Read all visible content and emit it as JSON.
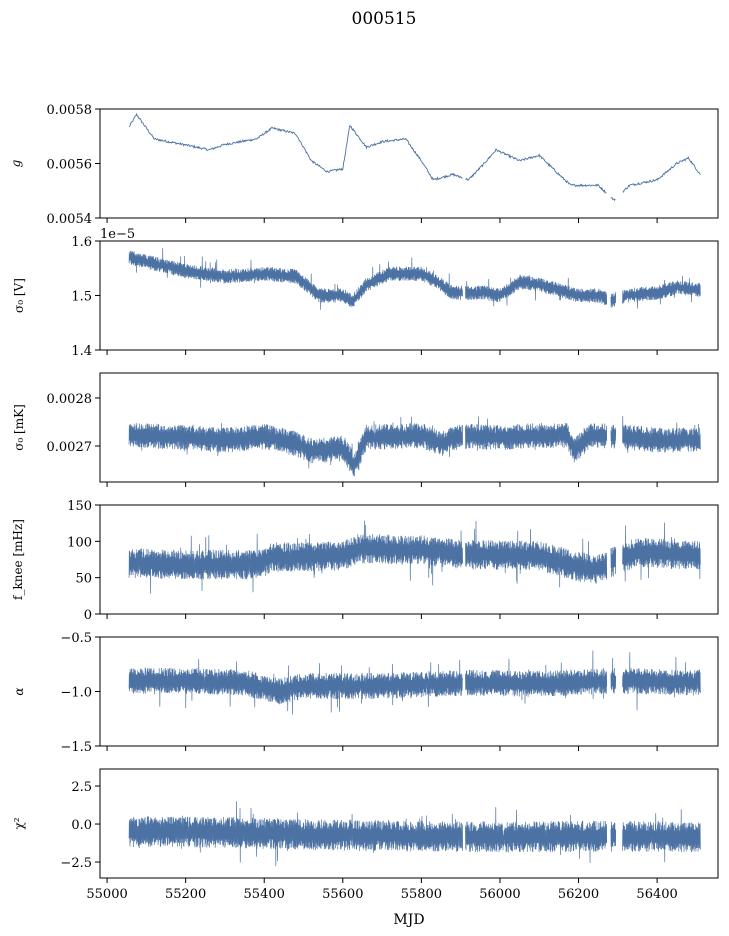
{
  "chart_data": {
    "type": "line",
    "title": "000515",
    "xlabel": "MJD",
    "xlim": [
      54982,
      56555
    ],
    "xticks": [
      55000,
      55200,
      55400,
      55600,
      55800,
      56000,
      56200,
      56400
    ],
    "xtick_labels": [
      "55000",
      "55200",
      "55400",
      "55600",
      "55800",
      "56000",
      "56200",
      "56400"
    ],
    "data_range": [
      55056,
      56510
    ],
    "gaps": [
      [
        55905,
        55912
      ],
      [
        56272,
        56282
      ],
      [
        56295,
        56312
      ]
    ],
    "color": "#4c72a4",
    "panels": [
      {
        "ylabel": "g",
        "ylim": [
          0.0054,
          0.0058
        ],
        "yticks": [
          0.0054,
          0.0056,
          0.0058
        ],
        "ytick_labels": [
          "0.0054",
          "0.0056",
          "0.0058"
        ],
        "offset": "",
        "noise": 4e-06,
        "spikes": 0.0,
        "trend": [
          [
            55056,
            0.005734
          ],
          [
            55075,
            0.00578
          ],
          [
            55120,
            0.00569
          ],
          [
            55200,
            0.005668
          ],
          [
            55260,
            0.00565
          ],
          [
            55300,
            0.00567
          ],
          [
            55380,
            0.00569
          ],
          [
            55420,
            0.00573
          ],
          [
            55480,
            0.00571
          ],
          [
            55520,
            0.00561
          ],
          [
            55560,
            0.00557
          ],
          [
            55600,
            0.00558
          ],
          [
            55618,
            0.00574
          ],
          [
            55660,
            0.00566
          ],
          [
            55700,
            0.00568
          ],
          [
            55760,
            0.00569
          ],
          [
            55800,
            0.00561
          ],
          [
            55830,
            0.00554
          ],
          [
            55880,
            0.00556
          ],
          [
            55920,
            0.00554
          ],
          [
            55960,
            0.0056
          ],
          [
            55990,
            0.00565
          ],
          [
            56050,
            0.00561
          ],
          [
            56100,
            0.00563
          ],
          [
            56150,
            0.00556
          ],
          [
            56180,
            0.00552
          ],
          [
            56250,
            0.00552
          ],
          [
            56290,
            0.005466
          ],
          [
            56330,
            0.00552
          ],
          [
            56400,
            0.00554
          ],
          [
            56450,
            0.0056
          ],
          [
            56480,
            0.00562
          ],
          [
            56510,
            0.00556
          ]
        ]
      },
      {
        "ylabel": "σ₀ [V]",
        "ylim": [
          1.4,
          1.6
        ],
        "yticks": [
          1.4,
          1.5,
          1.6
        ],
        "ytick_labels": [
          "1.4",
          "1.5",
          "1.6"
        ],
        "offset": "1e−5",
        "noise": 0.011,
        "spikes": 0.02,
        "trend": [
          [
            55056,
            1.57
          ],
          [
            55200,
            1.545
          ],
          [
            55300,
            1.535
          ],
          [
            55400,
            1.54
          ],
          [
            55480,
            1.535
          ],
          [
            55540,
            1.5
          ],
          [
            55600,
            1.5
          ],
          [
            55625,
            1.49
          ],
          [
            55660,
            1.52
          ],
          [
            55720,
            1.54
          ],
          [
            55800,
            1.54
          ],
          [
            55840,
            1.525
          ],
          [
            55880,
            1.505
          ],
          [
            55960,
            1.505
          ],
          [
            56000,
            1.5
          ],
          [
            56050,
            1.525
          ],
          [
            56100,
            1.52
          ],
          [
            56150,
            1.51
          ],
          [
            56200,
            1.5
          ],
          [
            56250,
            1.5
          ],
          [
            56280,
            1.49
          ],
          [
            56320,
            1.5
          ],
          [
            56400,
            1.505
          ],
          [
            56450,
            1.515
          ],
          [
            56510,
            1.51
          ]
        ]
      },
      {
        "ylabel": "σ₀ [mK]",
        "ylim": [
          0.002625,
          0.002852
        ],
        "yticks": [
          0.0027,
          0.0028
        ],
        "ytick_labels": [
          "0.0027",
          "0.0028"
        ],
        "offset": "",
        "noise": 2.2e-05,
        "spikes": 2e-05,
        "trend": [
          [
            55056,
            0.002722
          ],
          [
            55200,
            0.002718
          ],
          [
            55300,
            0.002712
          ],
          [
            55400,
            0.00272
          ],
          [
            55480,
            0.002705
          ],
          [
            55520,
            0.00269
          ],
          [
            55600,
            0.002695
          ],
          [
            55630,
            0.00266
          ],
          [
            55660,
            0.002718
          ],
          [
            55800,
            0.002722
          ],
          [
            55850,
            0.002705
          ],
          [
            55900,
            0.00272
          ],
          [
            56000,
            0.002718
          ],
          [
            56100,
            0.002722
          ],
          [
            56170,
            0.002722
          ],
          [
            56190,
            0.00269
          ],
          [
            56230,
            0.002722
          ],
          [
            56300,
            0.00272
          ],
          [
            56400,
            0.002712
          ],
          [
            56510,
            0.002712
          ]
        ]
      },
      {
        "ylabel": "f_knee [mHz]",
        "ylim": [
          0,
          150
        ],
        "yticks": [
          0,
          50,
          100,
          150
        ],
        "ytick_labels": [
          "0",
          "50",
          "100",
          "150"
        ],
        "offset": "",
        "noise": 17,
        "spikes": 30,
        "trend": [
          [
            55056,
            70
          ],
          [
            55200,
            68
          ],
          [
            55390,
            68
          ],
          [
            55420,
            78
          ],
          [
            55600,
            80
          ],
          [
            55640,
            90
          ],
          [
            55800,
            88
          ],
          [
            55900,
            82
          ],
          [
            56100,
            80
          ],
          [
            56200,
            65
          ],
          [
            56250,
            62
          ],
          [
            56300,
            75
          ],
          [
            56350,
            85
          ],
          [
            56510,
            80
          ]
        ]
      },
      {
        "ylabel": "α",
        "ylim": [
          -1.5,
          -0.5
        ],
        "yticks": [
          -1.5,
          -1.0,
          -0.5
        ],
        "ytick_labels": [
          "−1.5",
          "−1.0",
          "−0.5"
        ],
        "offset": "",
        "noise": 0.1,
        "spikes": 0.18,
        "trend": [
          [
            55056,
            -0.9
          ],
          [
            55200,
            -0.9
          ],
          [
            55350,
            -0.92
          ],
          [
            55440,
            -1.0
          ],
          [
            55500,
            -0.95
          ],
          [
            55700,
            -0.95
          ],
          [
            55900,
            -0.92
          ],
          [
            56100,
            -0.93
          ],
          [
            56300,
            -0.9
          ],
          [
            56510,
            -0.92
          ]
        ]
      },
      {
        "ylabel": "χ²",
        "ylim": [
          -3.55,
          3.62
        ],
        "yticks": [
          -2.5,
          0.0,
          2.5
        ],
        "ytick_labels": [
          "−2.5",
          "0.0",
          "2.5"
        ],
        "offset": "",
        "noise": 0.85,
        "spikes": 1.2,
        "trend": [
          [
            55056,
            -0.5
          ],
          [
            55300,
            -0.55
          ],
          [
            55500,
            -0.7
          ],
          [
            55800,
            -0.8
          ],
          [
            56000,
            -0.85
          ],
          [
            56300,
            -0.8
          ],
          [
            56510,
            -0.85
          ]
        ]
      }
    ]
  }
}
